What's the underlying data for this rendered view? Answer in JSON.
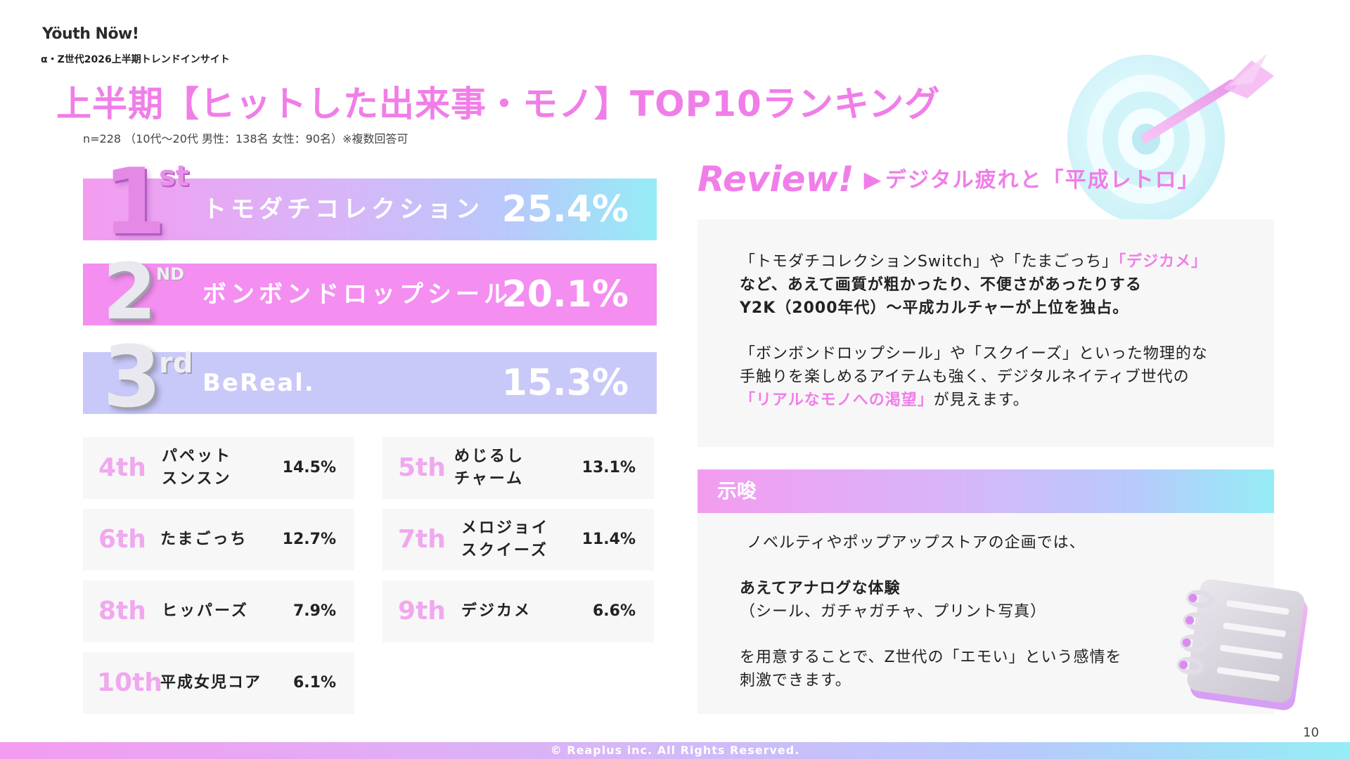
{
  "header": {
    "brand": "Yöuth Nöw!",
    "subtitle": "α・Z世代2026上半期トレンドインサイト",
    "title": "上半期【ヒットした出来事・モノ】TOP10ランキング",
    "sample": "n=228 （10代〜20代 男性：138名 女性：90名）※複数回答可"
  },
  "top3": [
    {
      "rank_num": "1",
      "rank_suffix": "st",
      "name": "トモダチコレクション",
      "pct": "25.4%"
    },
    {
      "rank_num": "2",
      "rank_suffix": "ND",
      "name": "ボンボンドロップシール",
      "pct": "20.1%"
    },
    {
      "rank_num": "3",
      "rank_suffix": "rd",
      "name": "BeReal.",
      "pct": "15.3%"
    }
  ],
  "ranks": [
    {
      "rank": "4th",
      "name": "パペット\nスンスン",
      "pct": "14.5%"
    },
    {
      "rank": "5th",
      "name": "めじるし\nチャーム",
      "pct": "13.1%"
    },
    {
      "rank": "6th",
      "name": "たまごっち",
      "pct": "12.7%"
    },
    {
      "rank": "7th",
      "name": "メロジョイ\nスクイーズ",
      "pct": "11.4%"
    },
    {
      "rank": "8th",
      "name": "ヒッパーズ",
      "pct": "7.9%"
    },
    {
      "rank": "9th",
      "name": "デジカメ",
      "pct": "6.6%"
    },
    {
      "rank": "10th",
      "name": "平成女児コア",
      "pct": "6.1%"
    }
  ],
  "review": {
    "label": "Review!",
    "arrow": "▶",
    "title": "デジタル疲れと「平成レトロ」",
    "p1_a": "「トモダチコレクションSwitch」や「たまごっち」",
    "p1_b": "「デジカメ」",
    "p1_c": "など、あえて画質が粗かったり、不便さがあったりする",
    "p1_d": "Y2K（2000年代）〜平成カルチャーが上位を独占。",
    "p2_a": "「ボンボンドロップシール」や「スクイーズ」といった物理的な",
    "p2_b": "手触りを楽しめるアイテムも強く、デジタルネイティブ世代の",
    "p2_c": "「リアルなモノへの渇望」",
    "p2_d": "が見えます。"
  },
  "shisa": {
    "title": "示唆",
    "l1": "ノベルティやポップアップストアの企画では、",
    "l2": "あえてアナログな体験",
    "l3": "（シール、ガチャガチャ、プリント写真）",
    "l4": "を用意することで、Z世代の「エモい」という感情を",
    "l5": "刺激できます。"
  },
  "page_number": "10",
  "footer": "© Reaplus inc. All Rights Reserved.",
  "colors": {
    "accent_pink": "#f07ee8",
    "rank_pink": "#f0a8ee",
    "bar2": "#f48ef0",
    "bar3": "#c8c8f9",
    "cyan": "#95ecf6"
  }
}
